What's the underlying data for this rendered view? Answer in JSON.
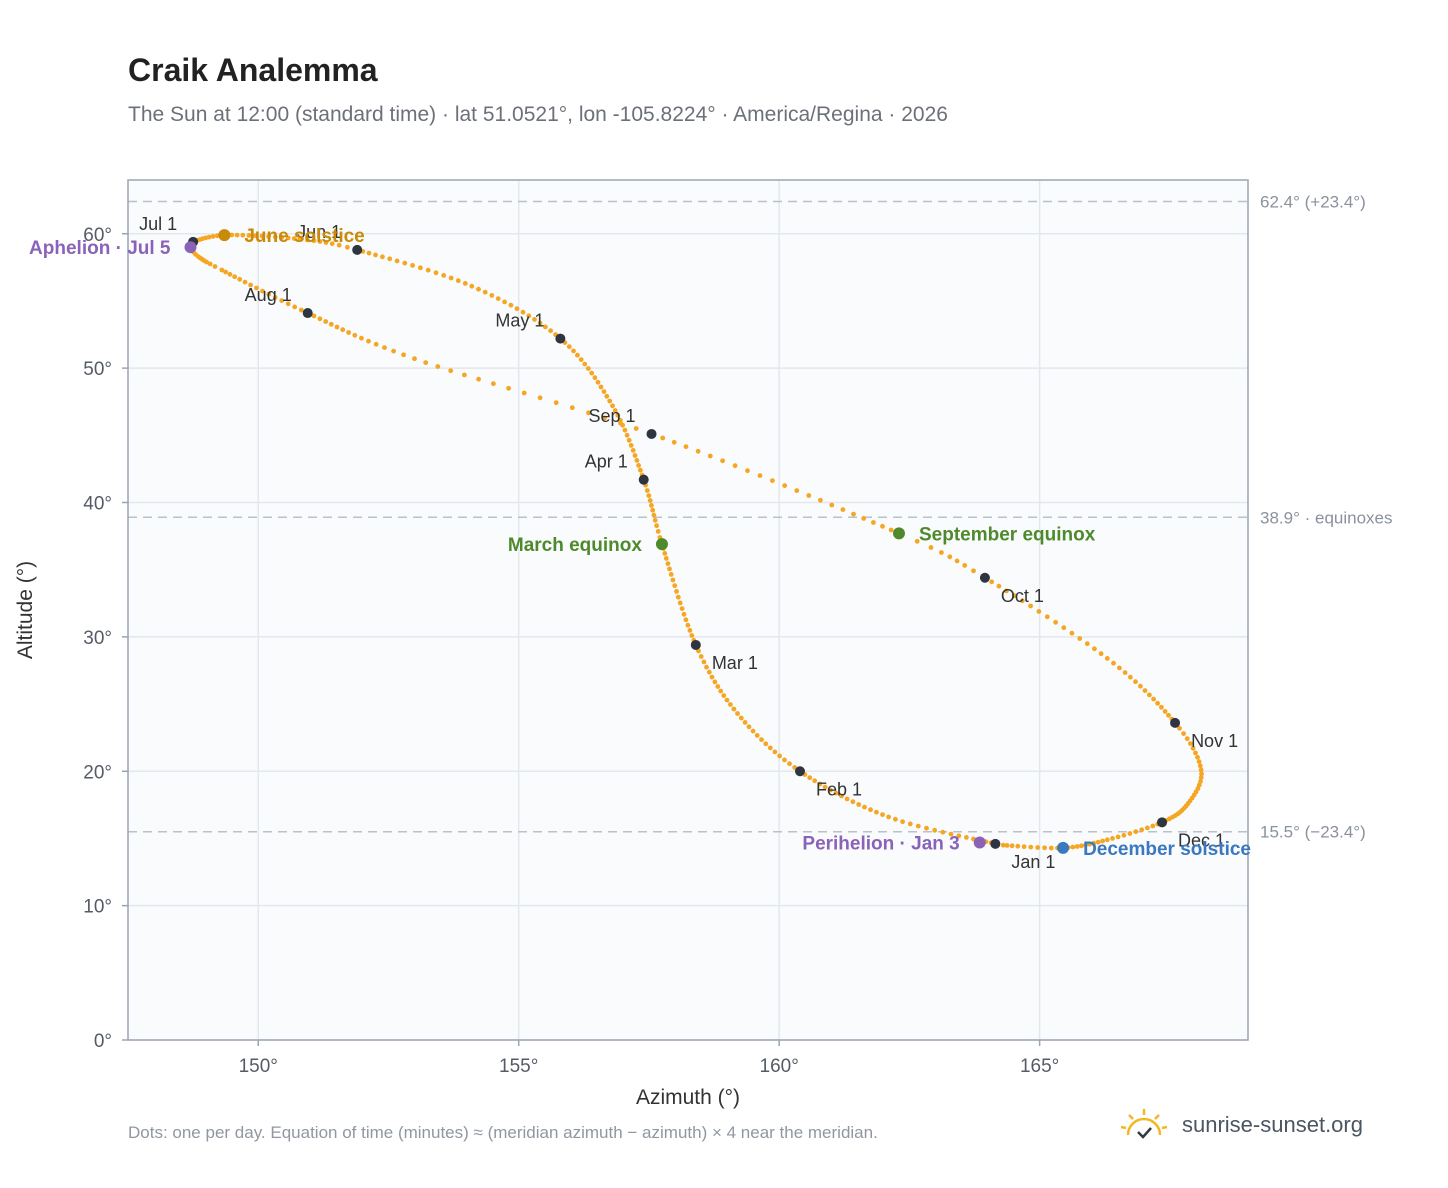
{
  "header": {
    "title": "Craik Analemma",
    "subtitle": "The Sun at 12:00 (standard time) · lat 51.0521°, lon -105.8224° · America/Regina · 2026"
  },
  "footer": {
    "note": "Dots: one per day. Equation of time (minutes) ≈ (meridian azimuth − azimuth) × 4 near the meridian.",
    "brand": "sunrise-sunset.org"
  },
  "colors": {
    "analemma": "#f5a623",
    "month_marker": "#2f3540",
    "solstice_june": "#c98a0a",
    "solstice_december": "#3a78bf",
    "equinox": "#4e8a2b",
    "apsis": "#8a63b8",
    "grid": "#e3e8ee",
    "plot_bg": "#f9fbfd",
    "frame": "#9aa5b4",
    "reference_line": "#b8c2ce"
  },
  "chart_data": {
    "type": "scatter",
    "title": "Craik Analemma",
    "xlabel": "Azimuth (°)",
    "ylabel": "Altitude (°)",
    "xlim": [
      147.5,
      169.0
    ],
    "ylim": [
      0,
      64
    ],
    "xticks": [
      150,
      155,
      160,
      165
    ],
    "yticks": [
      0,
      10,
      20,
      30,
      40,
      50,
      60
    ],
    "x_tick_labels": [
      "150°",
      "155°",
      "160°",
      "165°"
    ],
    "y_tick_labels": [
      "0°",
      "10°",
      "20°",
      "30°",
      "40°",
      "50°",
      "60°"
    ],
    "grid": true,
    "reference_lines": [
      {
        "altitude": 62.4,
        "label": "62.4° (+23.4°)"
      },
      {
        "altitude": 38.9,
        "label": "38.9° · equinoxes"
      },
      {
        "altitude": 15.5,
        "label": "15.5° (−23.4°)"
      }
    ],
    "path_points": [
      {
        "doy": 1,
        "az": 164.15,
        "alt": 14.6
      },
      {
        "doy": 16,
        "az": 162.1,
        "alt": 16.6
      },
      {
        "doy": 32,
        "az": 160.4,
        "alt": 20.0
      },
      {
        "doy": 46,
        "az": 159.2,
        "alt": 24.3
      },
      {
        "doy": 60,
        "az": 158.4,
        "alt": 29.4
      },
      {
        "doy": 79,
        "az": 157.75,
        "alt": 36.9
      },
      {
        "doy": 91,
        "az": 157.4,
        "alt": 41.7
      },
      {
        "doy": 106,
        "az": 156.8,
        "alt": 47.2
      },
      {
        "doy": 121,
        "az": 155.8,
        "alt": 52.2
      },
      {
        "doy": 136,
        "az": 154.1,
        "alt": 56.1
      },
      {
        "doy": 152,
        "az": 151.9,
        "alt": 58.8
      },
      {
        "doy": 160,
        "az": 150.8,
        "alt": 59.6
      },
      {
        "doy": 172,
        "az": 149.4,
        "alt": 59.9
      },
      {
        "doy": 182,
        "az": 148.75,
        "alt": 59.4
      },
      {
        "doy": 186,
        "az": 148.7,
        "alt": 59.0
      },
      {
        "doy": 191,
        "az": 148.85,
        "alt": 58.3
      },
      {
        "doy": 198,
        "az": 149.3,
        "alt": 57.3
      },
      {
        "doy": 213,
        "az": 150.95,
        "alt": 54.1
      },
      {
        "doy": 228,
        "az": 153.0,
        "alt": 50.7
      },
      {
        "doy": 244,
        "az": 157.55,
        "alt": 45.1
      },
      {
        "doy": 266,
        "az": 162.3,
        "alt": 37.7
      },
      {
        "doy": 274,
        "az": 163.95,
        "alt": 34.4
      },
      {
        "doy": 290,
        "az": 166.3,
        "alt": 28.4
      },
      {
        "doy": 305,
        "az": 167.6,
        "alt": 23.6
      },
      {
        "doy": 315,
        "az": 168.1,
        "alt": 20.1
      },
      {
        "doy": 325,
        "az": 167.85,
        "alt": 17.6
      },
      {
        "doy": 335,
        "az": 167.35,
        "alt": 16.2
      },
      {
        "doy": 345,
        "az": 166.3,
        "alt": 14.9
      },
      {
        "doy": 355,
        "az": 165.45,
        "alt": 14.3
      },
      {
        "doy": 365,
        "az": 164.3,
        "alt": 14.5
      }
    ],
    "month_markers": [
      {
        "label": "Jan 1",
        "az": 164.15,
        "alt": 14.6,
        "pos": "below-right"
      },
      {
        "label": "Feb 1",
        "az": 160.4,
        "alt": 20.0,
        "pos": "below-right"
      },
      {
        "label": "Mar 1",
        "az": 158.4,
        "alt": 29.4,
        "pos": "below-right"
      },
      {
        "label": "Apr 1",
        "az": 157.4,
        "alt": 41.7,
        "pos": "above-left"
      },
      {
        "label": "May 1",
        "az": 155.8,
        "alt": 52.2,
        "pos": "above-left"
      },
      {
        "label": "Jun 1",
        "az": 151.9,
        "alt": 58.8,
        "pos": "above-left"
      },
      {
        "label": "Jul 1",
        "az": 148.75,
        "alt": 59.4,
        "pos": "above-left"
      },
      {
        "label": "Aug 1",
        "az": 150.95,
        "alt": 54.1,
        "pos": "above-left"
      },
      {
        "label": "Sep 1",
        "az": 157.55,
        "alt": 45.1,
        "pos": "above-left"
      },
      {
        "label": "Oct 1",
        "az": 163.95,
        "alt": 34.4,
        "pos": "below-right"
      },
      {
        "label": "Nov 1",
        "az": 167.6,
        "alt": 23.6,
        "pos": "below-right"
      },
      {
        "label": "Dec 1",
        "az": 167.35,
        "alt": 16.2,
        "pos": "below-right"
      }
    ],
    "events": [
      {
        "label": "June solstice",
        "az": 149.35,
        "alt": 59.9,
        "color": "#c98a0a",
        "side": "right"
      },
      {
        "label": "December solstice",
        "az": 165.45,
        "alt": 14.3,
        "color": "#3a78bf",
        "side": "right"
      },
      {
        "label": "March equinox",
        "az": 157.75,
        "alt": 36.9,
        "color": "#4e8a2b",
        "side": "left"
      },
      {
        "label": "September equinox",
        "az": 162.3,
        "alt": 37.7,
        "color": "#4e8a2b",
        "side": "right"
      },
      {
        "label": "Aphelion · Jul 5",
        "az": 148.7,
        "alt": 59.0,
        "color": "#8a63b8",
        "side": "left"
      },
      {
        "label": "Perihelion · Jan 3",
        "az": 163.85,
        "alt": 14.7,
        "color": "#8a63b8",
        "side": "left"
      }
    ]
  }
}
